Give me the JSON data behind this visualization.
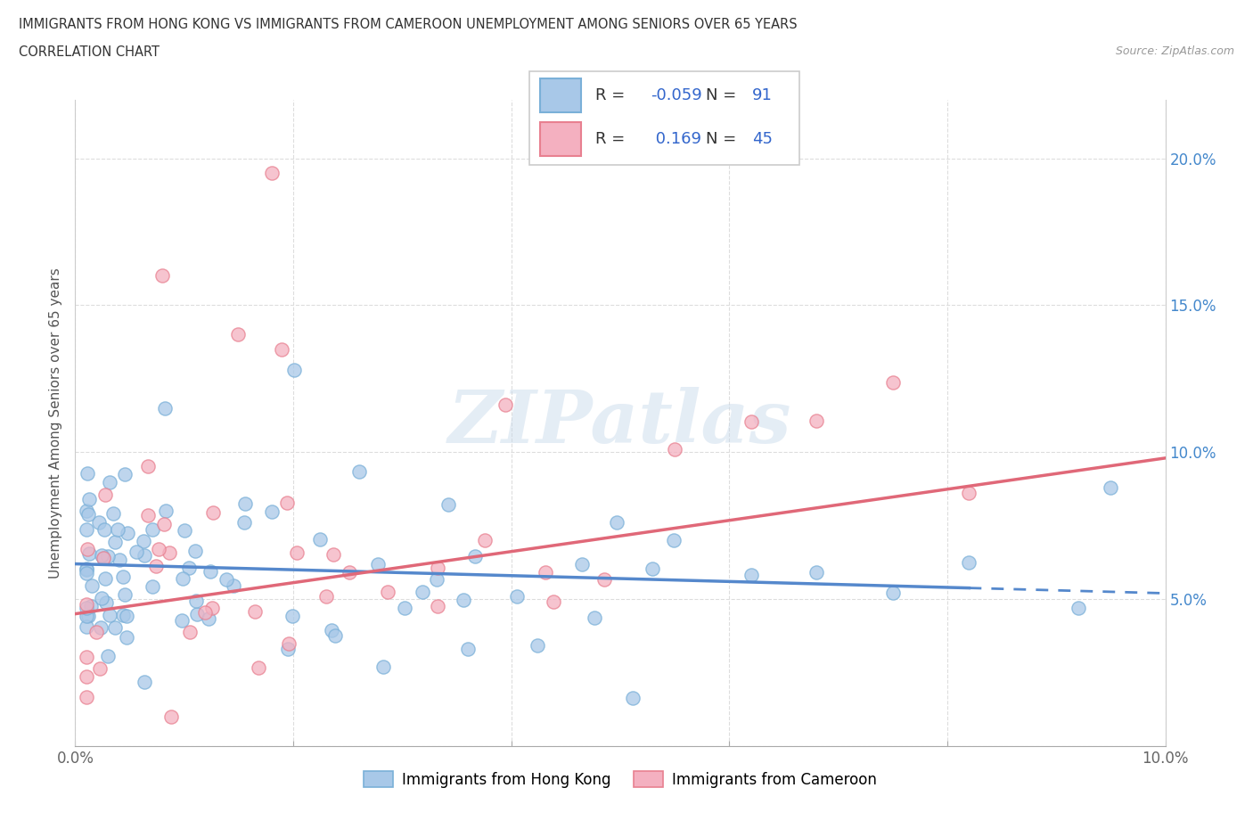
{
  "title_line1": "IMMIGRANTS FROM HONG KONG VS IMMIGRANTS FROM CAMEROON UNEMPLOYMENT AMONG SENIORS OVER 65 YEARS",
  "title_line2": "CORRELATION CHART",
  "source_text": "Source: ZipAtlas.com",
  "ylabel": "Unemployment Among Seniors over 65 years",
  "legend_label1": "Immigrants from Hong Kong",
  "legend_label2": "Immigrants from Cameroon",
  "R1": -0.059,
  "N1": 91,
  "R2": 0.169,
  "N2": 45,
  "color_hk": "#a8c8e8",
  "color_cam": "#f4b0c0",
  "color_hk_edge": "#7ab0d8",
  "color_cam_edge": "#e88090",
  "color_hk_line": "#5588cc",
  "color_cam_line": "#e06878",
  "watermark": "ZIPatlas",
  "xlim": [
    0.0,
    0.1
  ],
  "ylim": [
    0.0,
    0.22
  ],
  "title_color": "#333333",
  "tick_color_y": "#4488cc",
  "tick_color_x": "#666666",
  "grid_color": "#dddddd",
  "hk_line_start_y": 0.062,
  "hk_line_end_y": 0.052,
  "cam_line_start_y": 0.045,
  "cam_line_end_y": 0.098
}
